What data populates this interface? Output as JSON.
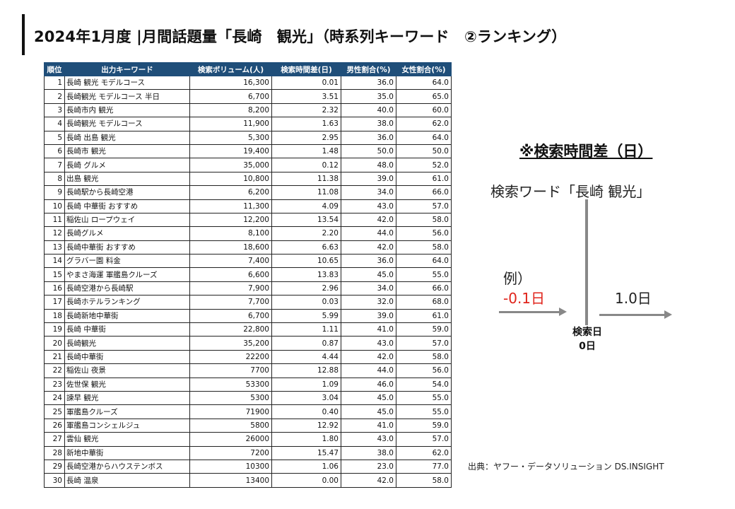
{
  "title": "2024年1月度 |月間話題量「長崎　観光」（時系列キーワード　②ランキング）",
  "table": {
    "headers": [
      "順位",
      "出力キーワード",
      "検索ボリューム(人)",
      "検索時間差(日)",
      "男性割合(%)",
      "女性割合(%)"
    ],
    "rows": [
      [
        "1",
        "長崎 観光 モデルコース",
        "16,300",
        "0.01",
        "36.0",
        "64.0"
      ],
      [
        "2",
        "長崎観光 モデルコース 半日",
        "6,700",
        "3.51",
        "35.0",
        "65.0"
      ],
      [
        "3",
        "長崎市内 観光",
        "8,200",
        "2.32",
        "40.0",
        "60.0"
      ],
      [
        "4",
        "長崎観光 モデルコース",
        "11,900",
        "1.63",
        "38.0",
        "62.0"
      ],
      [
        "5",
        "長崎 出島 観光",
        "5,300",
        "2.95",
        "36.0",
        "64.0"
      ],
      [
        "6",
        "長崎市 観光",
        "19,400",
        "1.48",
        "50.0",
        "50.0"
      ],
      [
        "7",
        "長崎 グルメ",
        "35,000",
        "0.12",
        "48.0",
        "52.0"
      ],
      [
        "8",
        "出島 観光",
        "10,800",
        "11.38",
        "39.0",
        "61.0"
      ],
      [
        "9",
        "長崎駅から長崎空港",
        "6,200",
        "11.08",
        "34.0",
        "66.0"
      ],
      [
        "10",
        "長崎 中華街 おすすめ",
        "11,300",
        "4.09",
        "43.0",
        "57.0"
      ],
      [
        "11",
        "稲佐山 ロープウェイ",
        "12,200",
        "13.54",
        "42.0",
        "58.0"
      ],
      [
        "12",
        "長崎グルメ",
        "8,100",
        "2.20",
        "44.0",
        "56.0"
      ],
      [
        "13",
        "長崎中華街 おすすめ",
        "18,600",
        "6.63",
        "42.0",
        "58.0"
      ],
      [
        "14",
        "グラバー園 料金",
        "7,400",
        "10.65",
        "36.0",
        "64.0"
      ],
      [
        "15",
        "やまさ海運 軍艦島クルーズ",
        "6,600",
        "13.83",
        "45.0",
        "55.0"
      ],
      [
        "16",
        "長崎空港から長崎駅",
        "7,900",
        "2.96",
        "34.0",
        "66.0"
      ],
      [
        "17",
        "長崎ホテルランキング",
        "7,700",
        "0.03",
        "32.0",
        "68.0"
      ],
      [
        "18",
        "長崎新地中華街",
        "6,700",
        "5.99",
        "39.0",
        "61.0"
      ],
      [
        "19",
        "長崎 中華街",
        "22,800",
        "1.11",
        "41.0",
        "59.0"
      ],
      [
        "20",
        "長崎観光",
        "35,200",
        "0.87",
        "43.0",
        "57.0"
      ],
      [
        "21",
        "長崎中華街",
        "22200",
        "4.44",
        "42.0",
        "58.0"
      ],
      [
        "22",
        "稲佐山 夜景",
        "7700",
        "12.88",
        "44.0",
        "56.0"
      ],
      [
        "23",
        "佐世保 観光",
        "53300",
        "1.09",
        "46.0",
        "54.0"
      ],
      [
        "24",
        "諫早 観光",
        "5300",
        "3.04",
        "45.0",
        "55.0"
      ],
      [
        "25",
        "軍艦島クルーズ",
        "71900",
        "0.40",
        "45.0",
        "55.0"
      ],
      [
        "26",
        "軍艦島コンシェルジュ",
        "5800",
        "12.92",
        "41.0",
        "59.0"
      ],
      [
        "27",
        "雲仙 観光",
        "26000",
        "1.80",
        "43.0",
        "57.0"
      ],
      [
        "28",
        "新地中華街",
        "7200",
        "15.47",
        "38.0",
        "62.0"
      ],
      [
        "29",
        "長崎空港からハウステンボス",
        "10300",
        "1.06",
        "23.0",
        "77.0"
      ],
      [
        "30",
        "長崎 温泉",
        "13400",
        "0.00",
        "42.0",
        "58.0"
      ]
    ]
  },
  "note": {
    "title": "※検索時間差（日）",
    "search_word": "検索ワード「長崎 観光」",
    "example_label": "例）",
    "negative_value": "-0.1日",
    "positive_value": "1.0日",
    "search_day_label": "検索日",
    "search_day_value": "0日"
  },
  "colors": {
    "header_bg": "#1f4e79",
    "negative": "#e0241b",
    "arrow": "#888888"
  },
  "source": "出典：ヤフー・データソリューション DS.INSIGHT"
}
